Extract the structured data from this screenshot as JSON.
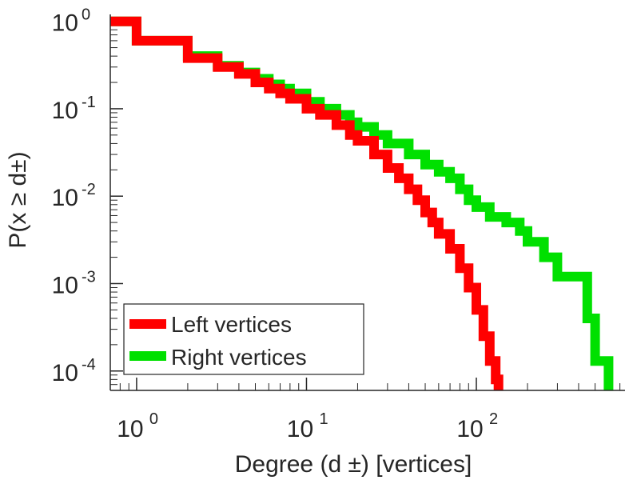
{
  "chart_data": {
    "type": "line",
    "title": "",
    "xlabel": "Degree (d ±) [vertices]",
    "ylabel": "P(x ≥ d±)",
    "xscale": "log",
    "yscale": "log",
    "xlim": [
      0.7,
      750
    ],
    "ylim": [
      6e-05,
      1.2
    ],
    "x_ticks": [
      {
        "value": 1,
        "base": "10",
        "exp": "0"
      },
      {
        "value": 10,
        "base": "10",
        "exp": "1"
      },
      {
        "value": 100,
        "base": "10",
        "exp": "2"
      }
    ],
    "y_ticks": [
      {
        "value": 1,
        "base": "10",
        "exp": "0"
      },
      {
        "value": 0.1,
        "base": "10",
        "exp": "-1"
      },
      {
        "value": 0.01,
        "base": "10",
        "exp": "-2"
      },
      {
        "value": 0.001,
        "base": "10",
        "exp": "-3"
      },
      {
        "value": 0.0001,
        "base": "10",
        "exp": "-4"
      }
    ],
    "legend": {
      "placement": "bottom-left",
      "entries": [
        "Left vertices",
        "Right vertices"
      ]
    },
    "grid": false,
    "step": true,
    "series": [
      {
        "name": "Left vertices",
        "color": "#ff0000",
        "x": [
          0.7,
          1,
          2,
          3,
          4,
          5,
          6,
          7,
          8,
          10,
          12,
          15,
          18,
          20,
          25,
          30,
          35,
          40,
          45,
          50,
          55,
          60,
          70,
          80,
          90,
          100,
          110,
          120,
          130,
          135
        ],
        "y": [
          1.0,
          0.6,
          0.38,
          0.3,
          0.25,
          0.2,
          0.17,
          0.15,
          0.13,
          0.1,
          0.085,
          0.065,
          0.05,
          0.043,
          0.03,
          0.021,
          0.016,
          0.012,
          0.009,
          0.0065,
          0.005,
          0.0037,
          0.0025,
          0.0015,
          0.0009,
          0.0005,
          0.00025,
          0.00013,
          8e-05,
          6e-05
        ]
      },
      {
        "name": "Right vertices",
        "color": "#00e000",
        "x": [
          0.7,
          1,
          2,
          3,
          4,
          5,
          6,
          7,
          8,
          10,
          12,
          15,
          18,
          20,
          25,
          30,
          40,
          50,
          60,
          70,
          80,
          90,
          100,
          120,
          150,
          180,
          200,
          250,
          300,
          400,
          450,
          500,
          550,
          600
        ],
        "y": [
          1.0,
          0.6,
          0.4,
          0.31,
          0.26,
          0.22,
          0.19,
          0.17,
          0.15,
          0.12,
          0.1,
          0.085,
          0.07,
          0.062,
          0.05,
          0.04,
          0.03,
          0.023,
          0.019,
          0.016,
          0.012,
          0.009,
          0.0075,
          0.0058,
          0.005,
          0.004,
          0.003,
          0.002,
          0.0012,
          0.0012,
          0.0004,
          0.00013,
          0.00013,
          6e-05
        ]
      }
    ]
  }
}
